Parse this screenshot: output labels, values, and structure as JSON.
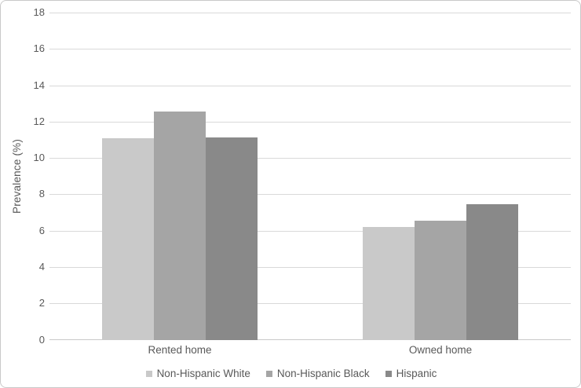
{
  "chart_data": {
    "type": "bar",
    "title": "",
    "xlabel": "",
    "ylabel": "Prevalence (%)",
    "categories": [
      "Rented home",
      "Owned home"
    ],
    "series": [
      {
        "name": "Non-Hispanic White",
        "color": "#c9c9c9",
        "values": [
          11.1,
          6.2
        ]
      },
      {
        "name": "Non-Hispanic Black",
        "color": "#a5a5a5",
        "values": [
          12.55,
          6.55
        ]
      },
      {
        "name": "Hispanic",
        "color": "#898989",
        "values": [
          11.15,
          7.45
        ]
      }
    ],
    "ylim": [
      0,
      18
    ],
    "ytick_step": 2,
    "ytick_labels": [
      "0",
      "2",
      "4",
      "6",
      "8",
      "10",
      "12",
      "14",
      "16",
      "18"
    ],
    "grid": true,
    "legend_position": "bottom",
    "gridline_color": "#d9d9d9",
    "axis_line_color": "#c9c9c9",
    "text_color": "#595959"
  }
}
